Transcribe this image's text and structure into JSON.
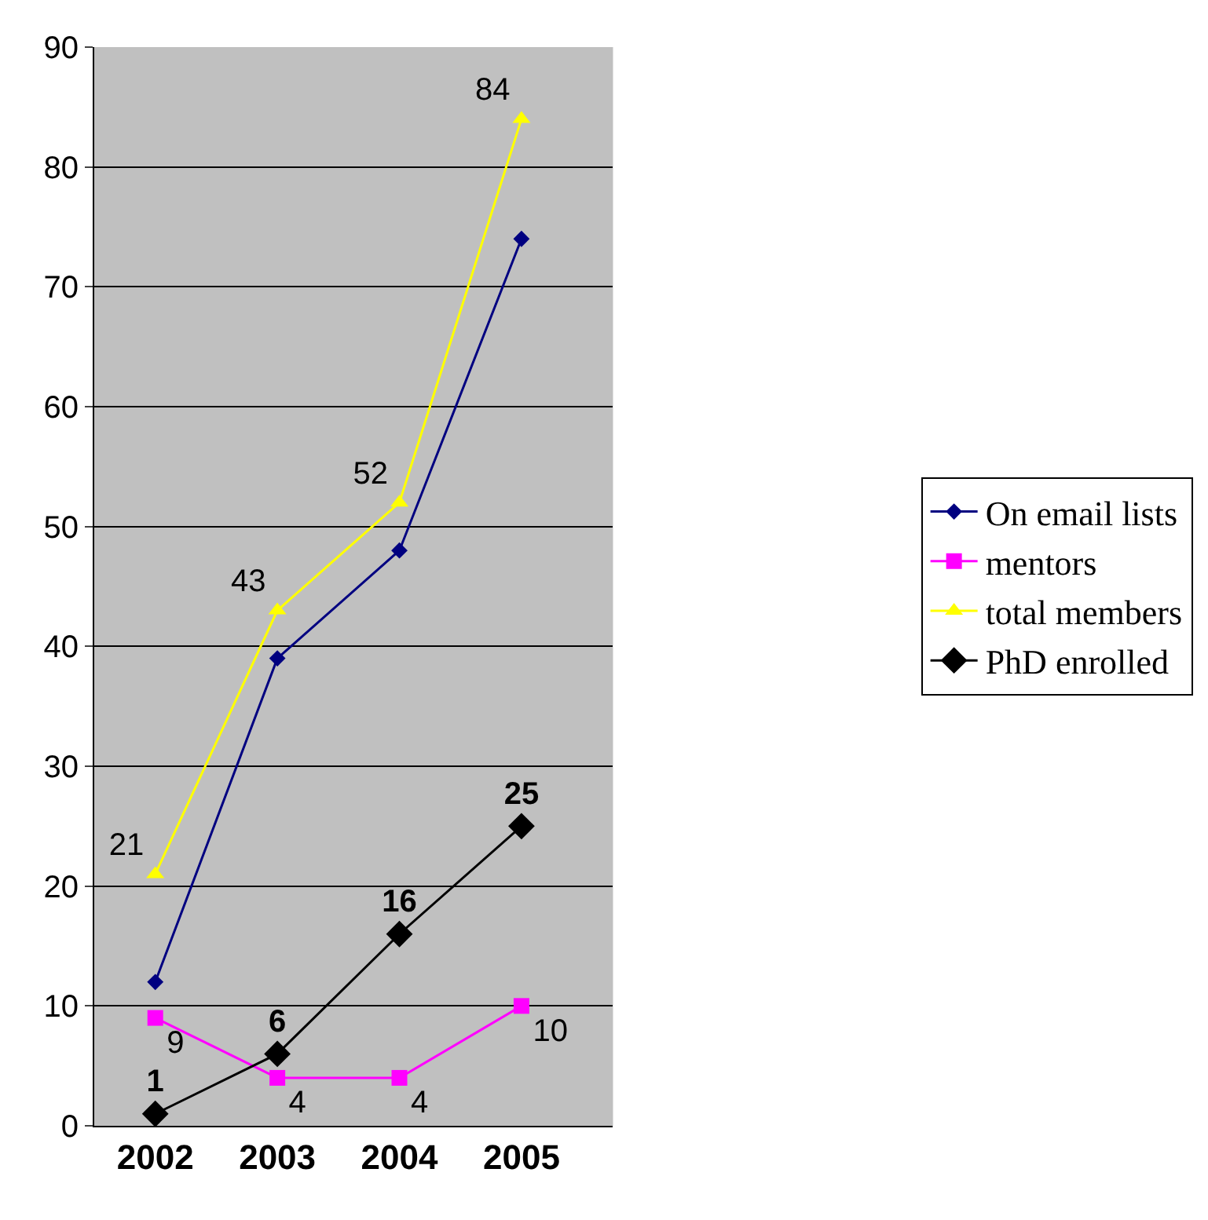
{
  "chart_data": {
    "type": "line",
    "categories": [
      "2002",
      "2003",
      "2004",
      "2005"
    ],
    "series": [
      {
        "name": "On email lists",
        "color": "#000080",
        "marker": "diamond",
        "values": [
          12,
          39,
          48,
          74
        ]
      },
      {
        "name": "mentors",
        "color": "#ff00ff",
        "marker": "square",
        "values": [
          9,
          4,
          4,
          10
        ],
        "value_labels": [
          "9",
          "4",
          "4",
          "10"
        ]
      },
      {
        "name": "total members",
        "color": "#ffff00",
        "marker": "triangle",
        "values": [
          21,
          43,
          52,
          84
        ],
        "value_labels": [
          "21",
          "43",
          "52",
          "84"
        ]
      },
      {
        "name": "PhD enrolled",
        "color": "#000000",
        "marker": "diamond",
        "values": [
          1,
          6,
          16,
          25
        ],
        "value_labels": [
          "1",
          "6",
          "16",
          "25"
        ]
      }
    ],
    "ylim": [
      0,
      90
    ],
    "yticks": [
      0,
      10,
      20,
      30,
      40,
      50,
      60,
      70,
      80,
      90
    ],
    "grid": "y",
    "legend": "right"
  }
}
